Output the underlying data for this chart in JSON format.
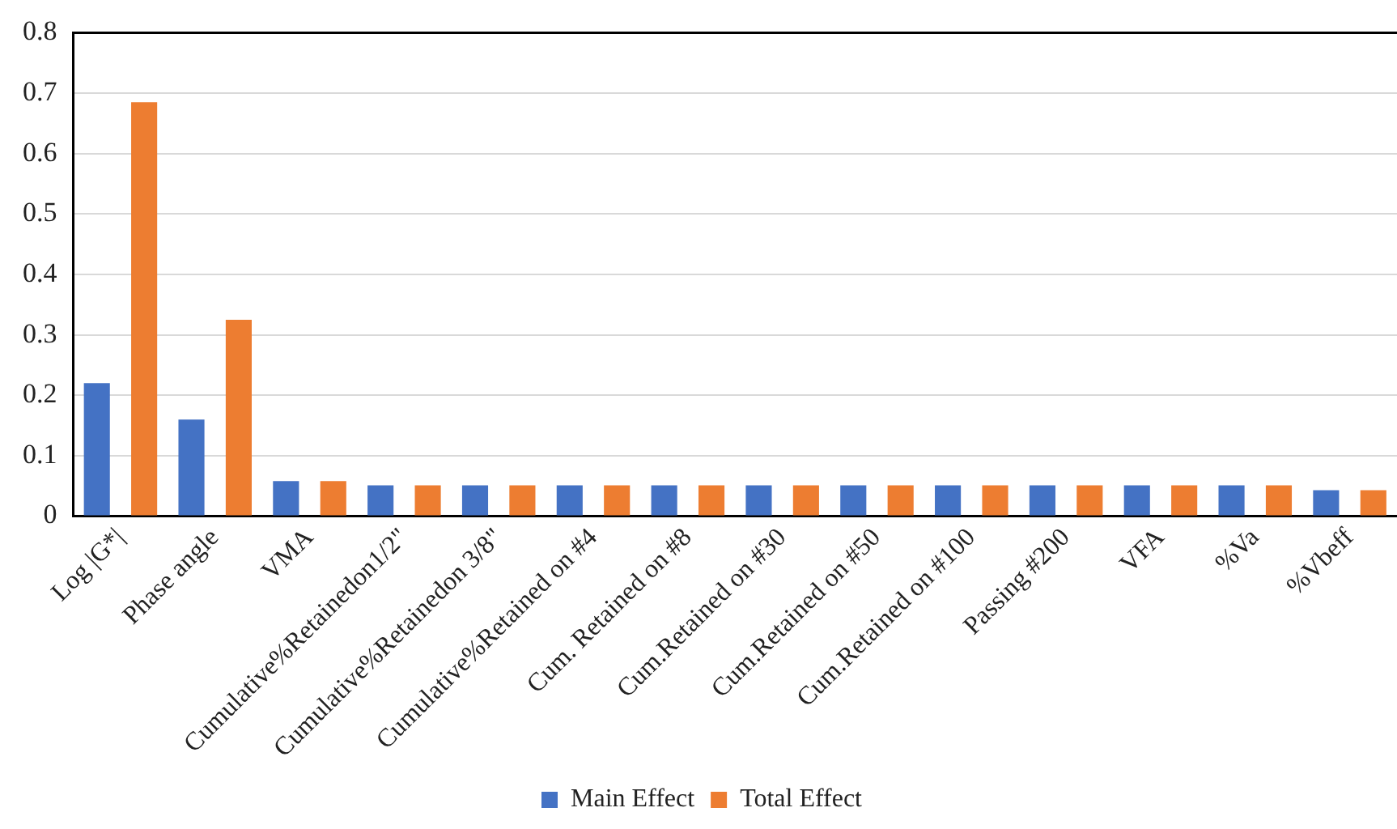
{
  "chart_data": {
    "type": "bar",
    "categories": [
      "Log |G*|",
      "Phase angle",
      "VMA",
      "Cumulative%Retainedon1/2\"",
      "Cumulative%Retainedon 3/8\"",
      "Cumulative%Retained on #4",
      "Cum. Retained on #8",
      "Cum.Retained on #30",
      "Cum.Retained on #50",
      "Cum.Retained on #100",
      "Passing #200",
      "VFA",
      "%Va",
      "%Vbeff"
    ],
    "series": [
      {
        "name": "Main Effect",
        "color": "#4472c4",
        "values": [
          0.22,
          0.16,
          0.058,
          0.051,
          0.051,
          0.051,
          0.051,
          0.051,
          0.051,
          0.051,
          0.051,
          0.051,
          0.051,
          0.043
        ]
      },
      {
        "name": "Total Effect",
        "color": "#ed7d31",
        "values": [
          0.685,
          0.325,
          0.058,
          0.051,
          0.051,
          0.051,
          0.051,
          0.051,
          0.051,
          0.051,
          0.051,
          0.051,
          0.051,
          0.043
        ]
      }
    ],
    "ylim": [
      0,
      0.8
    ],
    "yticks": [
      0,
      0.1,
      0.2,
      0.3,
      0.4,
      0.5,
      0.6,
      0.7,
      0.8
    ],
    "grid": "y",
    "legend": "bottom"
  }
}
